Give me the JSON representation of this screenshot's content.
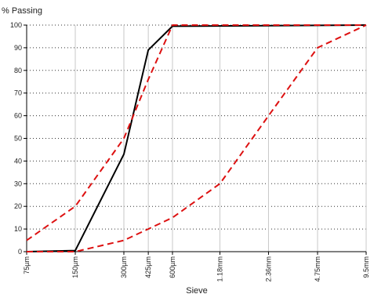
{
  "chart_data": {
    "type": "line",
    "ylabel": "% Passing",
    "xlabel": "Sieve",
    "x_scale": "log",
    "x_unit": "mm",
    "xlim": [
      0.075,
      9.5
    ],
    "ylim": [
      0,
      100
    ],
    "y_ticks": [
      0,
      10,
      20,
      30,
      40,
      50,
      60,
      70,
      80,
      90,
      100
    ],
    "x_ticks": [
      {
        "label": "75µm",
        "value": 0.075
      },
      {
        "label": "150µm",
        "value": 0.15
      },
      {
        "label": "300µm",
        "value": 0.3
      },
      {
        "label": "425µm",
        "value": 0.425
      },
      {
        "label": "600µm",
        "value": 0.6
      },
      {
        "label": "1.18mm",
        "value": 1.18
      },
      {
        "label": "2.36mm",
        "value": 2.36
      },
      {
        "label": "4.75mm",
        "value": 4.75
      },
      {
        "label": "9.5mm",
        "value": 9.5
      }
    ],
    "grid": {
      "horizontal": "dotted",
      "vertical": "solid"
    },
    "series": [
      {
        "color": "#000000",
        "style": "solid",
        "x": [
          0.075,
          0.15,
          0.3,
          0.425,
          0.6,
          9.5
        ],
        "y": [
          0,
          0.5,
          43,
          89,
          99.5,
          100
        ]
      },
      {
        "color": "#dd1111",
        "style": "dashed",
        "x": [
          0.075,
          0.15,
          0.3,
          0.425,
          0.6,
          9.5
        ],
        "y": [
          5,
          20,
          50,
          76,
          100,
          100
        ]
      },
      {
        "color": "#dd1111",
        "style": "dashed",
        "x": [
          0.075,
          0.15,
          0.3,
          0.425,
          0.6,
          1.18,
          2.36,
          4.75,
          9.5
        ],
        "y": [
          0,
          0,
          5,
          10,
          15,
          30,
          60,
          90,
          100
        ]
      }
    ]
  }
}
